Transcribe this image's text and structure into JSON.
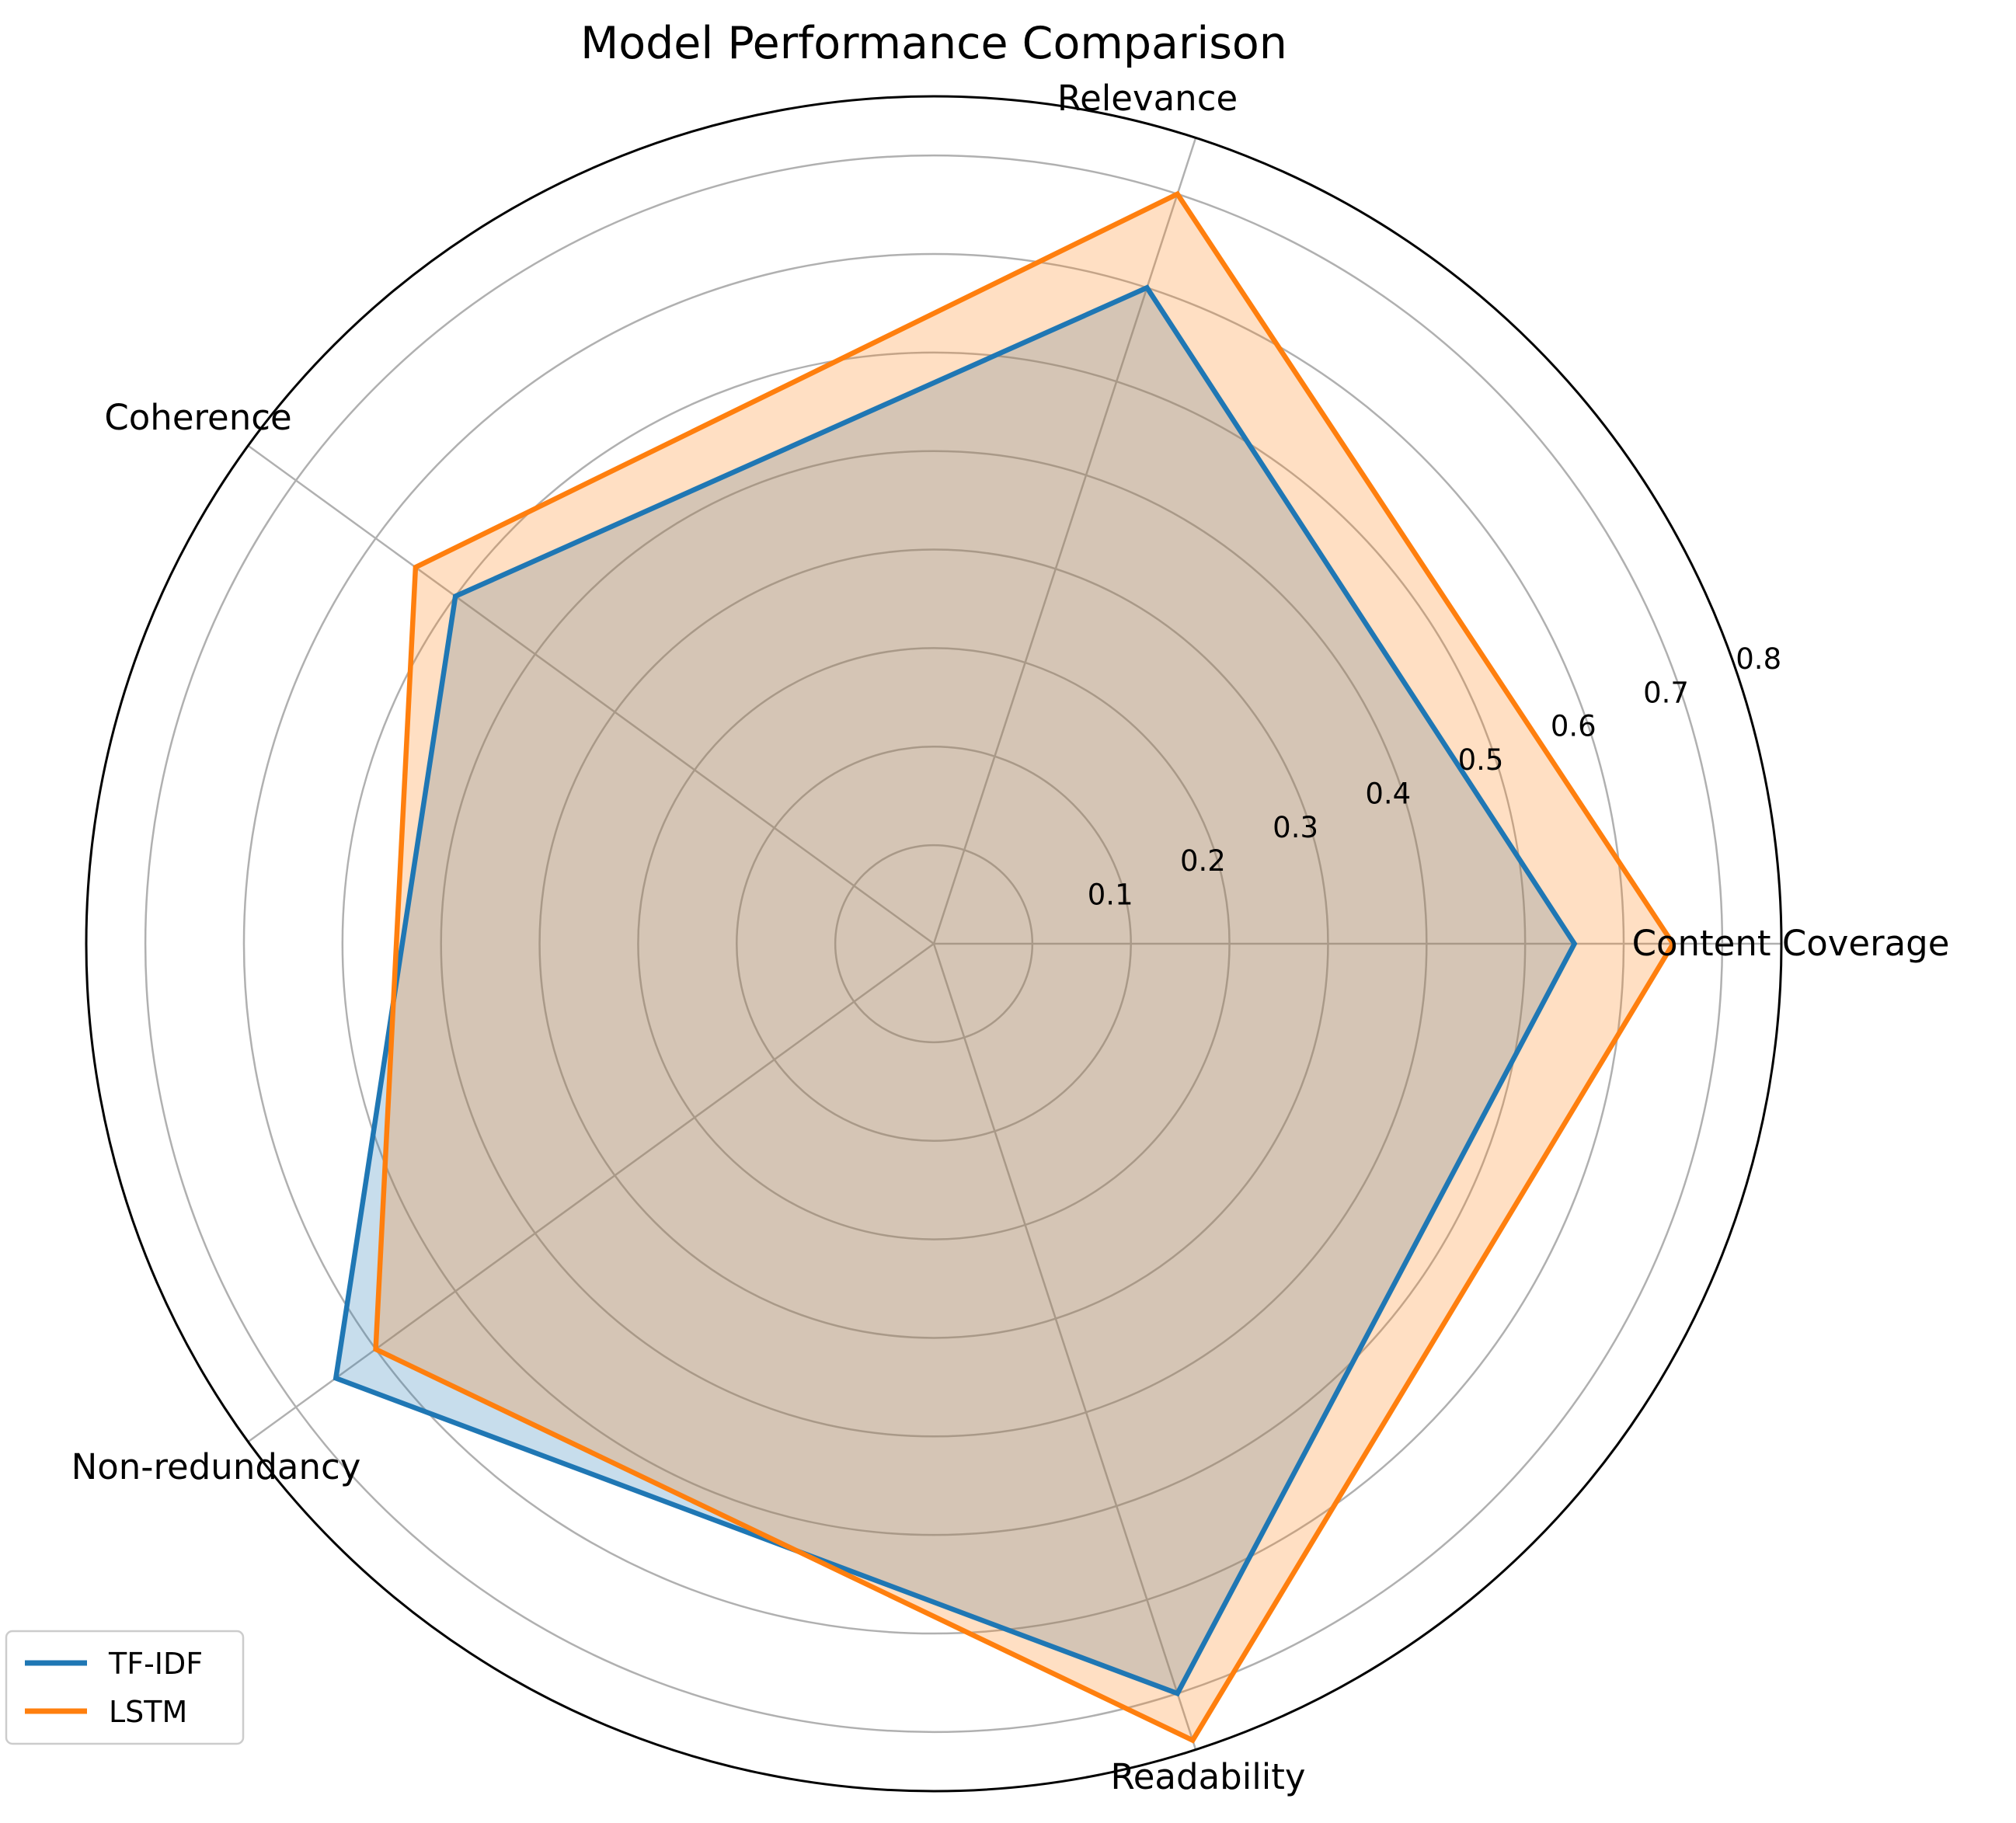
{
  "chart_data": {
    "type": "radar",
    "title": "Model Performance Comparison",
    "categories": [
      "Content Coverage",
      "Relevance",
      "Coherence",
      "Non-redundancy",
      "Readability"
    ],
    "series": [
      {
        "name": "TF-IDF",
        "values": [
          0.65,
          0.7,
          0.6,
          0.75,
          0.8
        ],
        "color": "#1f77b4"
      },
      {
        "name": "LSTM",
        "values": [
          0.75,
          0.8,
          0.65,
          0.7,
          0.85
        ],
        "color": "#ff7f0e"
      }
    ],
    "radial_ticks": [
      "0.1",
      "0.2",
      "0.3",
      "0.4",
      "0.5",
      "0.6",
      "0.7",
      "0.8"
    ],
    "rlim": [
      0,
      0.86
    ],
    "grid": true,
    "legend_position": "lower-left"
  }
}
